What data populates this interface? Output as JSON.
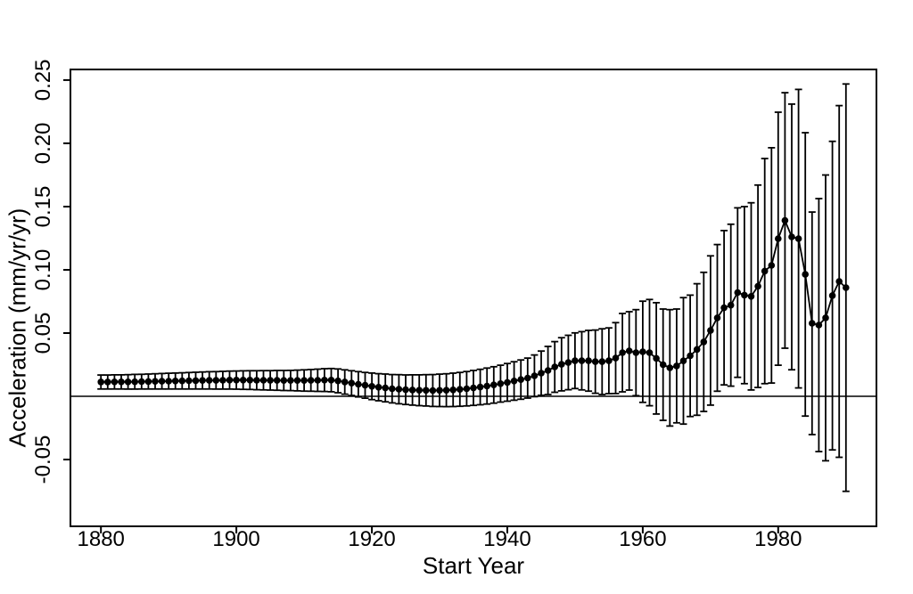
{
  "figure": {
    "background": "#ffffff",
    "stroke_color": "#000000",
    "text_color": "#000000"
  },
  "chart_data": {
    "type": "line",
    "title": "",
    "xlabel": "Start Year",
    "ylabel": "Acceleration (mm/yr/yr)",
    "xlim": [
      1875.5,
      1994.5
    ],
    "ylim": [
      -0.1028,
      0.2584
    ],
    "x_ticks": [
      1880,
      1900,
      1920,
      1940,
      1960,
      1980
    ],
    "x_tick_labels": [
      "1880",
      "1900",
      "1920",
      "1940",
      "1960",
      "1980"
    ],
    "y_ticks": [
      -0.05,
      0.05,
      0.1,
      0.15,
      0.2,
      0.25
    ],
    "y_tick_labels": [
      "-0.05",
      "0.05",
      "0.10",
      "0.15",
      "0.20",
      "0.25"
    ],
    "grid": false,
    "legend": "none",
    "zero_line": true,
    "series": [
      {
        "name": "acceleration",
        "marker": "filled-circle",
        "line": "solid",
        "error_bars": "symmetric",
        "color": "#000000",
        "x": [
          1880,
          1881,
          1882,
          1883,
          1884,
          1885,
          1886,
          1887,
          1888,
          1889,
          1890,
          1891,
          1892,
          1893,
          1894,
          1895,
          1896,
          1897,
          1898,
          1899,
          1900,
          1901,
          1902,
          1903,
          1904,
          1905,
          1906,
          1907,
          1908,
          1909,
          1910,
          1911,
          1912,
          1913,
          1914,
          1915,
          1916,
          1917,
          1918,
          1919,
          1920,
          1921,
          1922,
          1923,
          1924,
          1925,
          1926,
          1927,
          1928,
          1929,
          1930,
          1931,
          1932,
          1933,
          1934,
          1935,
          1936,
          1937,
          1938,
          1939,
          1940,
          1941,
          1942,
          1943,
          1944,
          1945,
          1946,
          1947,
          1948,
          1949,
          1950,
          1951,
          1952,
          1953,
          1954,
          1955,
          1956,
          1957,
          1958,
          1959,
          1960,
          1961,
          1962,
          1963,
          1964,
          1965,
          1966,
          1967,
          1968,
          1969,
          1970,
          1971,
          1972,
          1973,
          1974,
          1975,
          1976,
          1977,
          1978,
          1979,
          1980,
          1981,
          1982,
          1983,
          1984,
          1985,
          1986,
          1987,
          1988,
          1989,
          1990
        ],
        "y": [
          0.0113,
          0.0113,
          0.0114,
          0.0114,
          0.0114,
          0.0115,
          0.0116,
          0.0117,
          0.0118,
          0.0119,
          0.012,
          0.0121,
          0.0122,
          0.0123,
          0.0124,
          0.0125,
          0.0126,
          0.0126,
          0.0127,
          0.0128,
          0.0128,
          0.0128,
          0.0128,
          0.0127,
          0.0127,
          0.0126,
          0.0126,
          0.0125,
          0.0125,
          0.0125,
          0.0125,
          0.0126,
          0.0127,
          0.0128,
          0.0128,
          0.0122,
          0.0113,
          0.0104,
          0.0095,
          0.0087,
          0.0079,
          0.0072,
          0.0066,
          0.006,
          0.0056,
          0.0052,
          0.005,
          0.0048,
          0.0047,
          0.0046,
          0.0047,
          0.0048,
          0.0051,
          0.0055,
          0.006,
          0.0066,
          0.0073,
          0.0081,
          0.009,
          0.01,
          0.011,
          0.0121,
          0.0132,
          0.0144,
          0.0162,
          0.0183,
          0.0204,
          0.0232,
          0.0253,
          0.0267,
          0.0281,
          0.0281,
          0.0281,
          0.0274,
          0.0274,
          0.0281,
          0.0302,
          0.0345,
          0.0359,
          0.0345,
          0.0352,
          0.0345,
          0.03,
          0.025,
          0.0225,
          0.024,
          0.028,
          0.032,
          0.037,
          0.043,
          0.052,
          0.062,
          0.07,
          0.072,
          0.082,
          0.08,
          0.079,
          0.087,
          0.099,
          0.1035,
          0.1246,
          0.139,
          0.126,
          0.1246,
          0.0964,
          0.0577,
          0.0563,
          0.062,
          0.0796,
          0.0908,
          0.0859
        ],
        "ci_half_width": [
          0.0055,
          0.0055,
          0.0056,
          0.0056,
          0.0057,
          0.0058,
          0.0058,
          0.0059,
          0.006,
          0.0061,
          0.0062,
          0.0063,
          0.0064,
          0.0065,
          0.0066,
          0.0067,
          0.0068,
          0.0069,
          0.007,
          0.0071,
          0.0072,
          0.0073,
          0.0074,
          0.0075,
          0.0076,
          0.0077,
          0.0078,
          0.0079,
          0.008,
          0.0082,
          0.0084,
          0.0086,
          0.0088,
          0.009,
          0.0092,
          0.0094,
          0.0096,
          0.0098,
          0.01,
          0.0102,
          0.0105,
          0.0107,
          0.011,
          0.0112,
          0.0115,
          0.0117,
          0.012,
          0.0122,
          0.0124,
          0.0126,
          0.0128,
          0.013,
          0.0132,
          0.0134,
          0.0136,
          0.0138,
          0.014,
          0.0142,
          0.0144,
          0.0146,
          0.0149,
          0.0152,
          0.0155,
          0.0158,
          0.0165,
          0.0175,
          0.019,
          0.02,
          0.021,
          0.0215,
          0.022,
          0.023,
          0.024,
          0.025,
          0.026,
          0.026,
          0.028,
          0.031,
          0.031,
          0.034,
          0.04,
          0.042,
          0.044,
          0.044,
          0.046,
          0.045,
          0.05,
          0.048,
          0.052,
          0.055,
          0.059,
          0.058,
          0.061,
          0.064,
          0.067,
          0.07,
          0.074,
          0.08,
          0.089,
          0.093,
          0.1,
          0.101,
          0.105,
          0.118,
          0.112,
          0.088,
          0.1,
          0.113,
          0.122,
          0.139,
          0.161
        ]
      }
    ]
  }
}
